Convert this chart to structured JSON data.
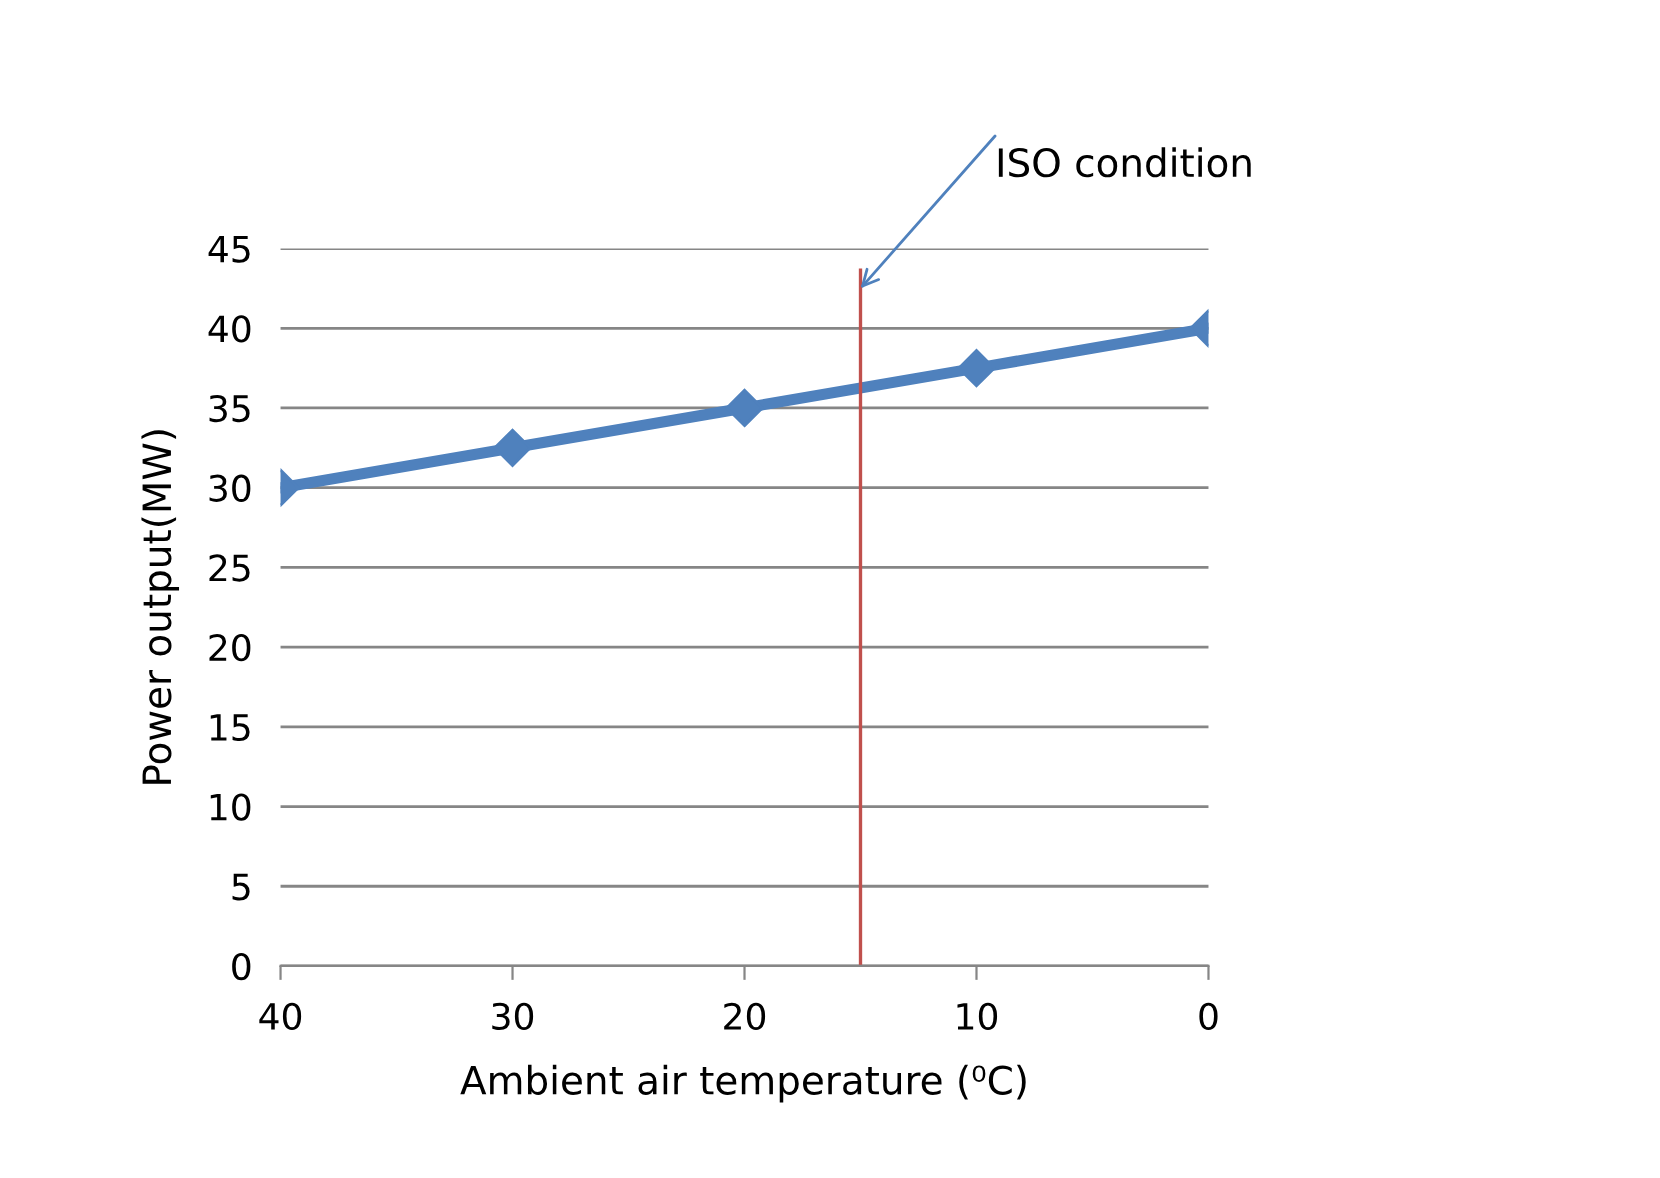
{
  "chart_data": {
    "type": "line",
    "xlabel": "Ambient air temperature (⁰C)",
    "ylabel": "Power output(MW)",
    "x": [
      40,
      30,
      20,
      10,
      0
    ],
    "series": [
      {
        "color": "#4f81bd",
        "values": [
          30,
          32.5,
          35,
          37.5,
          40
        ]
      }
    ],
    "marker": "diamond",
    "line_style": "solid",
    "xlim": [
      40,
      0
    ],
    "xticks": [
      40,
      30,
      20,
      10,
      0
    ],
    "ylim": [
      0,
      45
    ],
    "yticks": [
      0,
      5,
      10,
      15,
      20,
      25,
      30,
      35,
      40,
      45
    ],
    "grid": "y",
    "ref_lines": [
      {
        "axis": "x",
        "value": 15,
        "color": "#c0504d",
        "line_style": "solid"
      }
    ],
    "annotations": [
      {
        "text": "ISO condition",
        "x": 15,
        "y": 42.5
      }
    ]
  }
}
